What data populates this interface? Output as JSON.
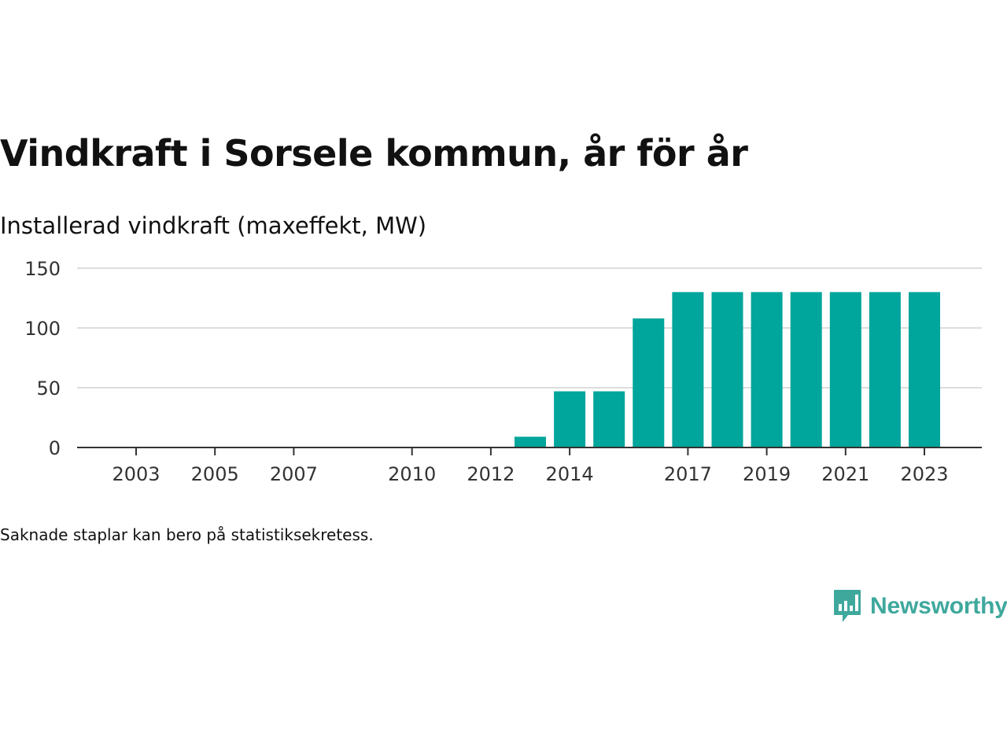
{
  "colors": {
    "bar": "#00a59b",
    "grid": "#dddddd",
    "axis": "#333333",
    "text": "#111111",
    "brand": "#3fa89d"
  },
  "chart_data": {
    "type": "bar",
    "title": "Vindkraft i Sorsele kommun, år för år",
    "subtitle": "Installerad vindkraft (maxeffekt, MW)",
    "footnote": "Saknade staplar kan bero på statistiksekretess.",
    "xlabel": "",
    "ylabel": "",
    "x_range": [
      2002,
      2024
    ],
    "ylim": [
      0,
      150
    ],
    "yticks": [
      0,
      50,
      100,
      150
    ],
    "xticks": [
      2003,
      2005,
      2007,
      2010,
      2012,
      2014,
      2017,
      2019,
      2021,
      2023
    ],
    "grid": true,
    "legend": "none",
    "categories": [
      2013,
      2014,
      2015,
      2016,
      2017,
      2018,
      2019,
      2020,
      2021,
      2022,
      2023
    ],
    "values": [
      9,
      47,
      47,
      108,
      130,
      130,
      130,
      130,
      130,
      130,
      130
    ]
  },
  "brand": {
    "name": "Newsworthy",
    "logo_icon": "newsworthy-chart-bubble-icon"
  }
}
